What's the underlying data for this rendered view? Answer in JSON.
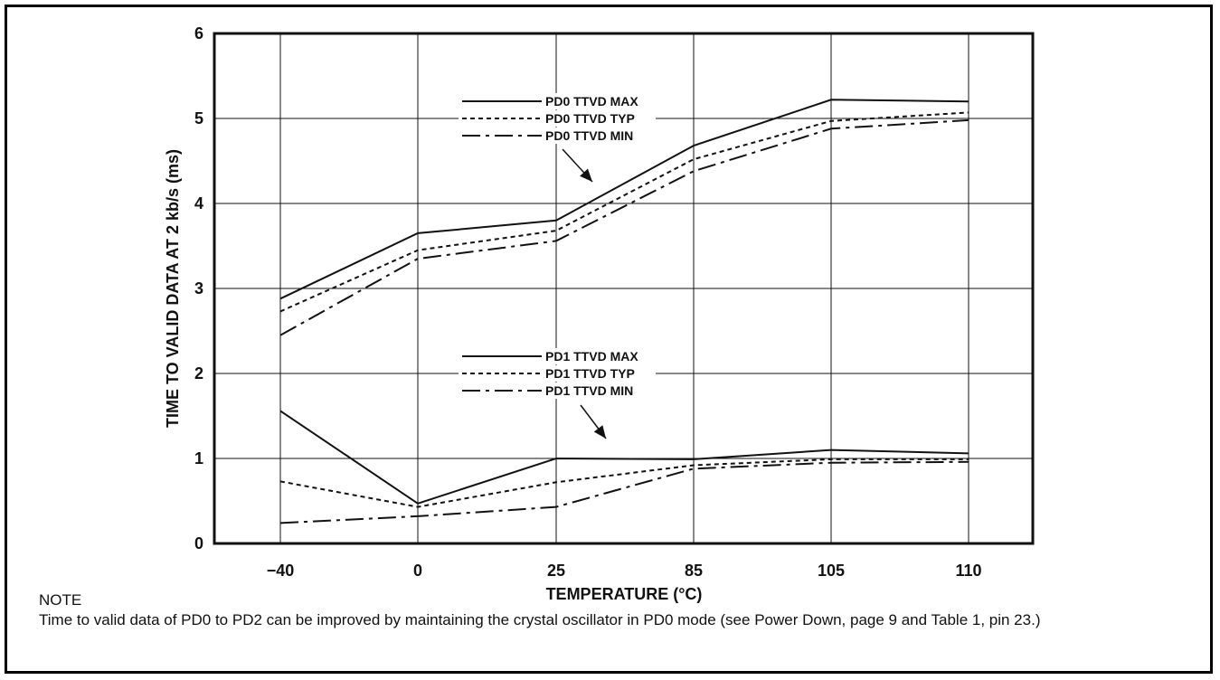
{
  "chart_data": {
    "type": "line",
    "xlabel": "TEMPERATURE (°C)",
    "ylabel": "TIME TO VALID DATA AT 2 kb/s (ms)",
    "categories": [
      "−40",
      "0",
      "25",
      "85",
      "105",
      "110"
    ],
    "ylim": [
      0,
      6
    ],
    "yticks": [
      "0",
      "1",
      "2",
      "3",
      "4",
      "5",
      "6"
    ],
    "grid": true,
    "series": [
      {
        "name": "PD0 TTVD MAX",
        "style": "solid",
        "values": [
          2.88,
          3.65,
          3.8,
          4.68,
          5.22,
          5.2
        ]
      },
      {
        "name": "PD0 TTVD TYP",
        "style": "dotted",
        "values": [
          2.73,
          3.45,
          3.68,
          4.52,
          4.97,
          5.07
        ]
      },
      {
        "name": "PD0 TTVD MIN",
        "style": "dashdot",
        "values": [
          2.45,
          3.35,
          3.56,
          4.38,
          4.88,
          4.98
        ]
      },
      {
        "name": "PD1 TTVD MAX",
        "style": "solid",
        "values": [
          1.56,
          0.47,
          1.0,
          0.99,
          1.1,
          1.06
        ]
      },
      {
        "name": "PD1 TTVD TYP",
        "style": "dotted",
        "values": [
          0.73,
          0.43,
          0.72,
          0.92,
          0.99,
          0.99
        ]
      },
      {
        "name": "PD1 TTVD MIN",
        "style": "dashdot",
        "values": [
          0.24,
          0.32,
          0.43,
          0.88,
          0.95,
          0.96
        ]
      }
    ],
    "legends": [
      {
        "group": "PD0",
        "entries": [
          "PD0 TTVD MAX",
          "PD0 TTVD TYP",
          "PD0 TTVD MIN"
        ]
      },
      {
        "group": "PD1",
        "entries": [
          "PD1 TTVD MAX",
          "PD1 TTVD TYP",
          "PD1 TTVD MIN"
        ]
      }
    ]
  },
  "note": {
    "label": "NOTE",
    "text": "Time to valid data of PD0 to PD2 can be improved by maintaining the crystal oscillator in PD0 mode (see Power Down, page 9 and Table 1, pin 23.)"
  },
  "colors": {
    "line": "#111111",
    "grid": "#111111",
    "background": "#ffffff"
  }
}
